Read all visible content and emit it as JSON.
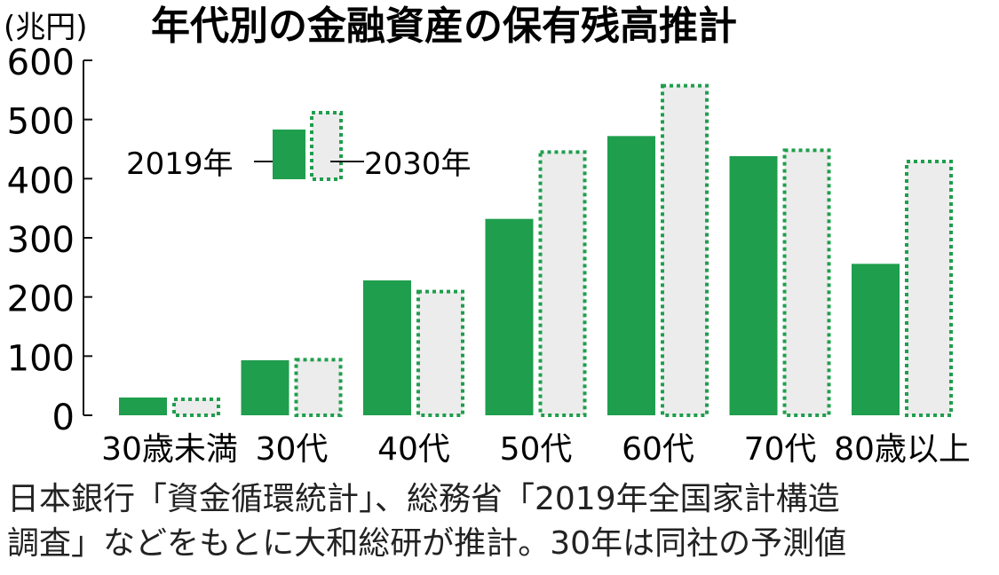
{
  "chart_data": {
    "type": "bar",
    "title": "年代別の金融資産の保有残高推計",
    "unit_label": "(兆円)",
    "categories": [
      "30歳未満",
      "30代",
      "40代",
      "50代",
      "60代",
      "70代",
      "80歳以上"
    ],
    "series": [
      {
        "name": "2019年",
        "values": [
          30,
          93,
          228,
          332,
          472,
          438,
          256
        ],
        "color": "#1f9e4d",
        "style": "solid"
      },
      {
        "name": "2030年",
        "values": [
          30,
          97,
          212,
          448,
          560,
          451,
          432
        ],
        "color": "#1f9e4d",
        "fill": "#ececec",
        "style": "dotted"
      }
    ],
    "ylim": [
      0,
      600
    ],
    "yticks": [
      "0",
      "100",
      "200",
      "300",
      "400",
      "500",
      "600"
    ],
    "grid": false,
    "legend_placement": "top-left"
  },
  "source": {
    "line1": "日本銀行「資金循環統計」、総務省「2019年全国家計構造",
    "line2": "調査」などをもとに大和総研が推計。30年は同社の予測値"
  }
}
